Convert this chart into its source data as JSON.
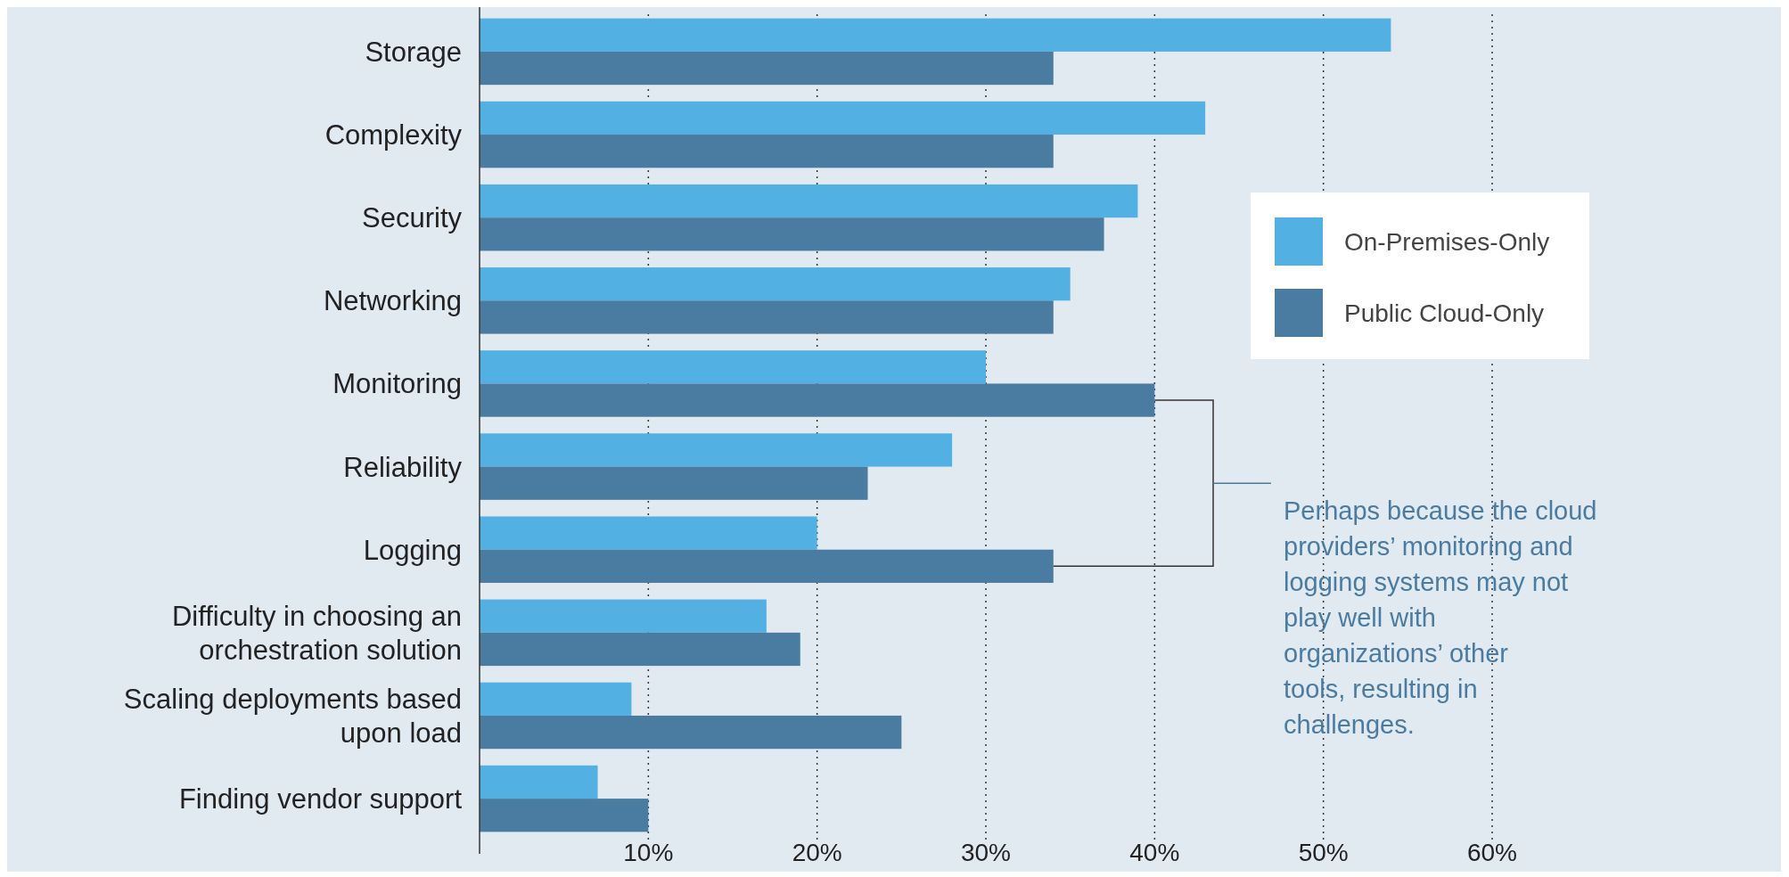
{
  "chart_data": {
    "type": "bar",
    "orientation": "horizontal",
    "categories": [
      "Storage",
      "Complexity",
      "Security",
      "Networking",
      "Monitoring",
      "Reliability",
      "Logging",
      "Difficulty in choosing an orchestration solution",
      "Scaling deployments based upon load",
      "Finding vendor support"
    ],
    "series": [
      {
        "name": "On-Premises-Only",
        "color": "#52b0e3",
        "values": [
          54,
          43,
          39,
          35,
          30,
          28,
          20,
          17,
          9,
          7
        ]
      },
      {
        "name": "Public Cloud-Only",
        "color": "#4a7ba0",
        "values": [
          34,
          34,
          37,
          34,
          40,
          23,
          34,
          19,
          25,
          10
        ]
      }
    ],
    "xlim": [
      0,
      60
    ],
    "xticks": [
      {
        "value": 10,
        "label": "10%"
      },
      {
        "value": 20,
        "label": "20%"
      },
      {
        "value": 30,
        "label": "30%"
      },
      {
        "value": 40,
        "label": "40%"
      },
      {
        "value": 50,
        "label": "50%"
      },
      {
        "value": 60,
        "label": "60%"
      }
    ],
    "grid": "x",
    "legend": "top right",
    "annotations": [
      "Perhaps because the cloud providers’ monitoring and logging systems may not play well with organizations’ other tools, resulting in challenges."
    ]
  }
}
